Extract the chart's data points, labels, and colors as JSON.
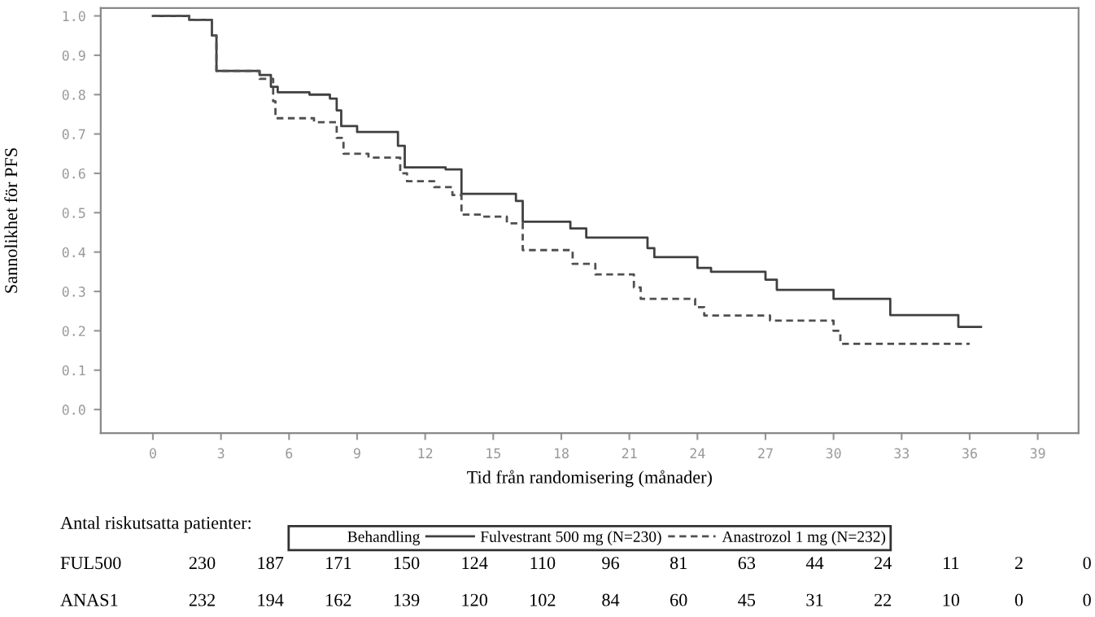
{
  "chart_data": {
    "type": "step",
    "xlabel": "Tid från randomisering (månader)",
    "ylabel": "Sannolikhet för PFS",
    "legend_title": "Behandling",
    "series": [
      {
        "name": "Fulvestrant 500 mg (N=230)",
        "color": "#404040",
        "line_style": "solid",
        "x": [
          0,
          1.6,
          2.6,
          2.8,
          4.7,
          5.2,
          5.5,
          6.9,
          7.8,
          8.1,
          8.3,
          9.0,
          10.8,
          11.1,
          12.9,
          13.6,
          16.0,
          16.3,
          18.4,
          19.1,
          21.8,
          22.1,
          24.0,
          24.6,
          27.0,
          27.5,
          30.0,
          32.5,
          35.5,
          36.5
        ],
        "values": [
          1.0,
          0.99,
          0.95,
          0.86,
          0.85,
          0.82,
          0.806,
          0.8,
          0.79,
          0.76,
          0.72,
          0.705,
          0.67,
          0.615,
          0.61,
          0.548,
          0.53,
          0.477,
          0.46,
          0.437,
          0.41,
          0.387,
          0.36,
          0.35,
          0.33,
          0.304,
          0.281,
          0.24,
          0.21,
          0.21
        ]
      },
      {
        "name": "Anastrozol 1 mg (N=232)",
        "color": "#505050",
        "line_style": "dashed",
        "x": [
          0,
          1.6,
          2.6,
          2.8,
          4.7,
          5.3,
          5.4,
          7.1,
          8.1,
          8.4,
          9.5,
          10.9,
          11.2,
          12.4,
          13.2,
          13.6,
          14.5,
          15.6,
          16.3,
          18.5,
          19.5,
          21.2,
          21.5,
          23.9,
          24.3,
          27.2,
          30.0,
          30.3,
          36.0
        ],
        "values": [
          1.0,
          0.99,
          0.95,
          0.86,
          0.84,
          0.783,
          0.74,
          0.73,
          0.69,
          0.65,
          0.64,
          0.6,
          0.58,
          0.565,
          0.545,
          0.495,
          0.49,
          0.473,
          0.405,
          0.37,
          0.343,
          0.31,
          0.281,
          0.26,
          0.239,
          0.226,
          0.2,
          0.167,
          0.167
        ]
      }
    ],
    "xlim": [
      -2.3,
      40.8
    ],
    "xticks": [
      0,
      3,
      6,
      9,
      12,
      15,
      18,
      21,
      24,
      27,
      30,
      33,
      36,
      39
    ],
    "ylim": [
      -0.06,
      1.02
    ],
    "yticks": [
      {
        "value": 0,
        "label": "0.0"
      },
      {
        "value": 0.1,
        "label": "0.1"
      },
      {
        "value": 0.2,
        "label": "0.2"
      },
      {
        "value": 0.3,
        "label": "0.3"
      },
      {
        "value": 0.4,
        "label": "0.4"
      },
      {
        "value": 0.5,
        "label": "0.5"
      },
      {
        "value": 0.6,
        "label": "0.6"
      },
      {
        "value": 0.7,
        "label": "0.7"
      },
      {
        "value": 0.8,
        "label": "0.8"
      },
      {
        "value": 0.9,
        "label": "0.9"
      },
      {
        "value": 1.0,
        "label": "1.0"
      }
    ],
    "grid": false,
    "legend": "bottom",
    "marker": "none",
    "annotations": [
      "Antal riskutsatta patienter:",
      "FUL500 230 187 171 150 124 110 96 81 63 44 24 11 2 0",
      "ANAS1 232 194 162 139 120 102 84 60 45 31 22 10 0 0"
    ]
  }
}
